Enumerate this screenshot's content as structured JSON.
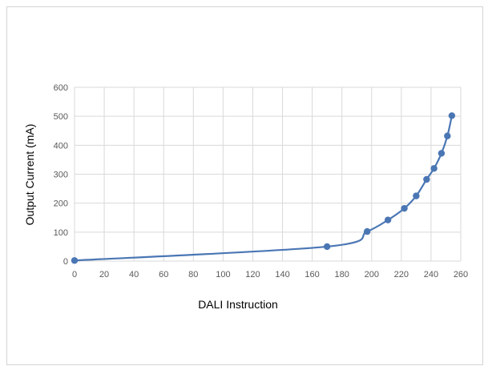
{
  "chart_data": {
    "type": "line",
    "title": "",
    "xlabel": "DALI Instruction",
    "ylabel": "Output Current (mA)",
    "xlim": [
      0,
      260
    ],
    "ylim": [
      0,
      600
    ],
    "x_ticks": [
      "0",
      "20",
      "40",
      "60",
      "80",
      "100",
      "120",
      "140",
      "160",
      "180",
      "200",
      "220",
      "240",
      "260"
    ],
    "y_ticks": [
      "0",
      "100",
      "200",
      "300",
      "400",
      "500",
      "600"
    ],
    "grid": true,
    "legend": "none",
    "series": [
      {
        "color": "#4a76b4",
        "points": [
          {
            "x": 0,
            "y": 2
          },
          {
            "x": 170,
            "y": 50
          },
          {
            "x": 197,
            "y": 102
          },
          {
            "x": 211,
            "y": 142
          },
          {
            "x": 222,
            "y": 182
          },
          {
            "x": 230,
            "y": 225
          },
          {
            "x": 237,
            "y": 282
          },
          {
            "x": 242,
            "y": 320
          },
          {
            "x": 247,
            "y": 372
          },
          {
            "x": 251,
            "y": 432
          },
          {
            "x": 254,
            "y": 502
          }
        ]
      }
    ],
    "colors": {
      "grid": "#d9d9d9",
      "tick_label": "#595959",
      "axis_title": "#000000",
      "frame_border": "#d4d4d4"
    }
  }
}
